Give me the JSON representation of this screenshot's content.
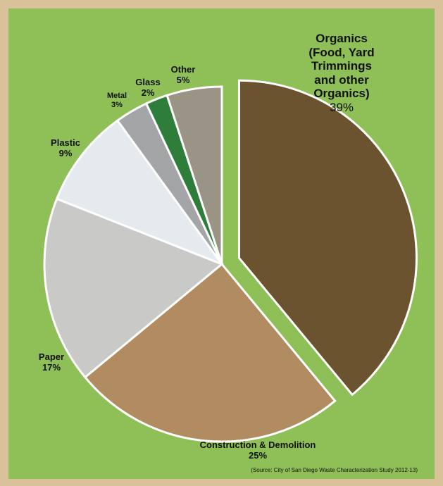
{
  "chart_data": {
    "type": "pie",
    "categories": [
      "Organics\n(Food, Yard Trimmings\nand other Organics)",
      "Construction & Demolition",
      "Paper",
      "Plastic",
      "Metal",
      "Glass",
      "Other"
    ],
    "values": [
      39,
      25,
      17,
      9,
      3,
      2,
      5
    ],
    "value_labels": [
      "39%",
      "25%",
      "17%",
      "9%",
      "3%",
      "2%",
      "5%"
    ],
    "colors": [
      "#6b5330",
      "#b08c60",
      "#c9c9c7",
      "#e4eaee",
      "#a3a5a6",
      "#2f7d3b",
      "#9a9486"
    ],
    "source": "(Source: City of San Diego Waste Characterization Study 2012-13)"
  }
}
